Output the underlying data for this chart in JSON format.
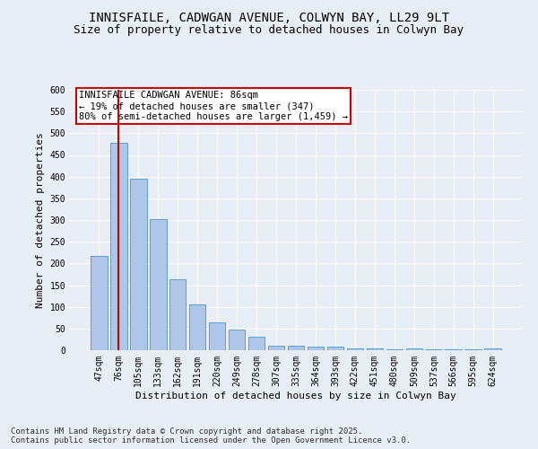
{
  "title1": "INNISFAILE, CADWGAN AVENUE, COLWYN BAY, LL29 9LT",
  "title2": "Size of property relative to detached houses in Colwyn Bay",
  "xlabel": "Distribution of detached houses by size in Colwyn Bay",
  "ylabel": "Number of detached properties",
  "categories": [
    "47sqm",
    "76sqm",
    "105sqm",
    "133sqm",
    "162sqm",
    "191sqm",
    "220sqm",
    "249sqm",
    "278sqm",
    "307sqm",
    "335sqm",
    "364sqm",
    "393sqm",
    "422sqm",
    "451sqm",
    "480sqm",
    "509sqm",
    "537sqm",
    "566sqm",
    "595sqm",
    "624sqm"
  ],
  "values": [
    218,
    478,
    395,
    302,
    163,
    105,
    65,
    47,
    32,
    10,
    10,
    9,
    8,
    5,
    4,
    2,
    4,
    2,
    2,
    2,
    4
  ],
  "bar_color": "#aec6e8",
  "bar_edge_color": "#5a9fd4",
  "marker_bar_index": 1,
  "marker_color": "#cc0000",
  "annotation_title": "INNISFAILE CADWGAN AVENUE: 86sqm",
  "annotation_line1": "← 19% of detached houses are smaller (347)",
  "annotation_line2": "80% of semi-detached houses are larger (1,459) →",
  "annotation_box_color": "#ffffff",
  "annotation_border_color": "#cc0000",
  "ylim": [
    0,
    600
  ],
  "yticks": [
    0,
    50,
    100,
    150,
    200,
    250,
    300,
    350,
    400,
    450,
    500,
    550,
    600
  ],
  "footer1": "Contains HM Land Registry data © Crown copyright and database right 2025.",
  "footer2": "Contains public sector information licensed under the Open Government Licence v3.0.",
  "background_color": "#e8eef5",
  "plot_bg_color": "#e8eef5",
  "title_fontsize": 10,
  "subtitle_fontsize": 9,
  "axis_label_fontsize": 8,
  "tick_fontsize": 7,
  "footer_fontsize": 6.5,
  "annotation_fontsize": 7.5
}
